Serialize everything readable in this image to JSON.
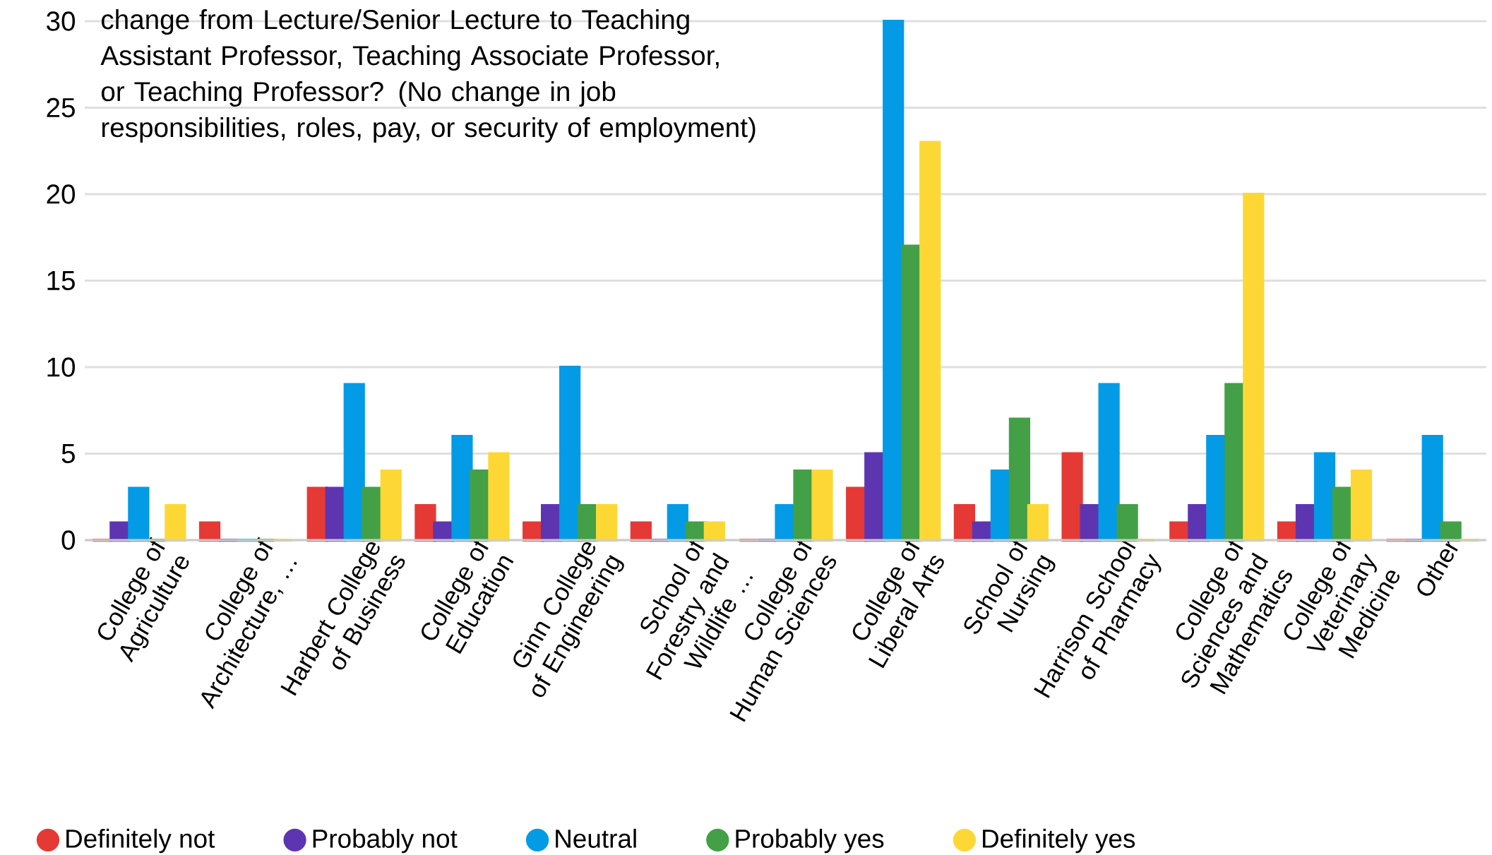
{
  "chart_data": {
    "type": "bar",
    "title": "change from Lecture/Senior Lecture to Teaching Assistant Professor, Teaching Associate Professor, or Teaching Professor? (No change in job responsibilities, roles, pay, or security of employment)",
    "categories": [
      "College of Agriculture",
      "College of Architecture, …",
      "Harbert College of Business",
      "College of Education",
      "Ginn College of Engineering",
      "School of Forestry and Wildlife …",
      "College of Human Sciences",
      "College of Liberal Arts",
      "School of Nursing",
      "Harrison School of Pharmacy",
      "College of Sciences and Mathematics",
      "College of Veterinary Medicine",
      "Other"
    ],
    "series": [
      {
        "name": "Definitely not",
        "color": "#e53935",
        "values": [
          0,
          1,
          3,
          2,
          1,
          1,
          0,
          3,
          2,
          5,
          1,
          1,
          0
        ]
      },
      {
        "name": "Probably not",
        "color": "#5e35b1",
        "values": [
          1,
          0,
          3,
          1,
          2,
          0,
          0,
          5,
          1,
          2,
          2,
          2,
          0
        ]
      },
      {
        "name": "Neutral",
        "color": "#039be5",
        "values": [
          3,
          0,
          9,
          6,
          10,
          2,
          2,
          30,
          4,
          9,
          6,
          5,
          6
        ]
      },
      {
        "name": "Probably yes",
        "color": "#43a047",
        "values": [
          0,
          0,
          3,
          4,
          2,
          1,
          4,
          17,
          7,
          2,
          9,
          3,
          1
        ]
      },
      {
        "name": "Definitely yes",
        "color": "#fdd835",
        "values": [
          2,
          0,
          4,
          5,
          2,
          1,
          4,
          23,
          2,
          0,
          20,
          4,
          0
        ]
      }
    ],
    "ylim": [
      0,
      30
    ],
    "yticks": [
      0,
      5,
      10,
      15,
      20,
      25,
      30
    ],
    "grid": "y",
    "legend": "bottom"
  }
}
